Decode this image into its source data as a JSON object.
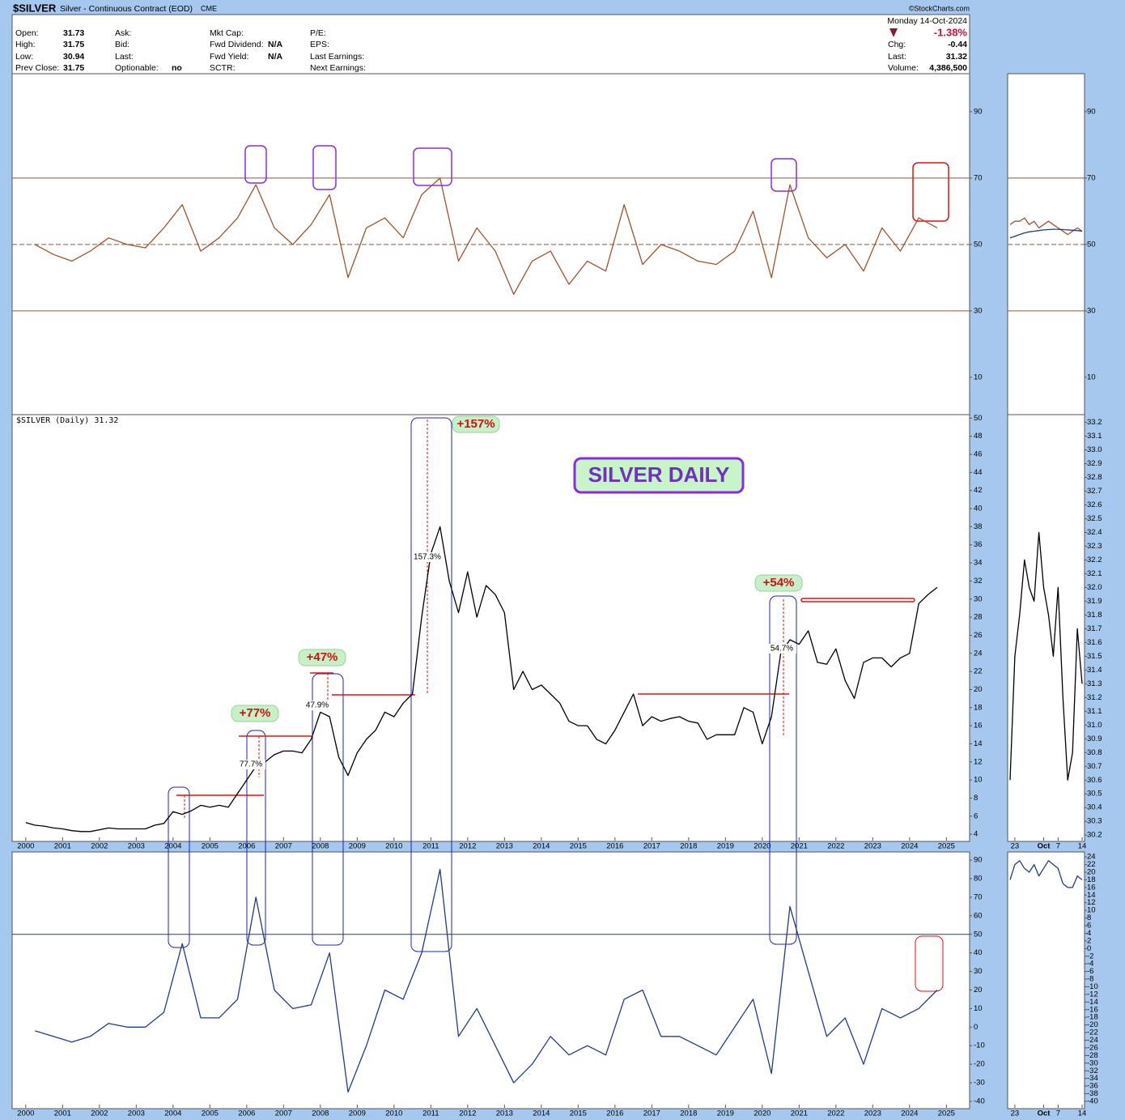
{
  "header": {
    "symbol": "$SILVER",
    "description": "Silver - Continuous Contract (EOD)",
    "exchange": "CME",
    "watermark": "©StockCharts.com",
    "date": "Monday  14-Oct-2024",
    "change_pct": "-1.38%",
    "columns": [
      [
        {
          "label": "Open:",
          "value": "31.73"
        },
        {
          "label": "High:",
          "value": "31.75"
        },
        {
          "label": "Low:",
          "value": "30.94"
        },
        {
          "label": "Prev Close:",
          "value": "31.75"
        }
      ],
      [
        {
          "label": "Ask:"
        },
        {
          "label": "Bid:"
        },
        {
          "label": "Last:"
        },
        {
          "label": "Optionable:",
          "value": "no"
        }
      ],
      [
        {
          "label": "Mkt Cap:"
        },
        {
          "label": "Fwd Dividend:",
          "value": "N/A"
        },
        {
          "label": "Fwd Yield:",
          "value": "N/A"
        },
        {
          "label": "SCTR:"
        }
      ],
      [
        {
          "label": "P/E:"
        },
        {
          "label": "EPS:"
        },
        {
          "label": "Last Earnings:"
        },
        {
          "label": "Next Earnings:"
        }
      ]
    ],
    "summary": [
      {
        "label": "Chg:",
        "value": "-0.44"
      },
      {
        "label": "Last:",
        "value": "31.32"
      },
      {
        "label": "Volume:",
        "value": "4,386,500"
      }
    ]
  },
  "chart_data": [
    {
      "type": "line",
      "color": "#a0522d",
      "x": [
        2000.25,
        2000.75,
        2001.25,
        2001.75,
        2002.25,
        2002.75,
        2003.25,
        2003.75,
        2004.25,
        2004.75,
        2005.25,
        2005.75,
        2006.25,
        2006.75,
        2007.25,
        2007.75,
        2008.25,
        2008.75,
        2009.25,
        2009.75,
        2010.25,
        2010.75,
        2011.25,
        2011.75,
        2012.25,
        2012.75,
        2013.25,
        2013.75,
        2014.25,
        2014.75,
        2015.25,
        2015.75,
        2016.25,
        2016.75,
        2017.25,
        2017.75,
        2018.25,
        2018.75,
        2019.25,
        2019.75,
        2020.25,
        2020.75,
        2021.25,
        2021.75,
        2022.25,
        2022.75,
        2023.25,
        2023.75,
        2024.25,
        2024.75
      ],
      "values": [
        50,
        47,
        45,
        48,
        52,
        50,
        49,
        55,
        62,
        48,
        52,
        58,
        68,
        55,
        50,
        56,
        65,
        40,
        55,
        58,
        52,
        65,
        70,
        45,
        55,
        48,
        35,
        45,
        48,
        38,
        45,
        42,
        62,
        44,
        50,
        48,
        45,
        44,
        48,
        60,
        40,
        68,
        52,
        46,
        50,
        42,
        55,
        48,
        58,
        55
      ],
      "xlim": [
        1999.63,
        2025.63
      ],
      "ylim": [
        -1,
        101.2
      ],
      "yticks": [
        10,
        30,
        50,
        70,
        90
      ],
      "reference_lines": [
        30,
        50,
        70
      ],
      "reference_color": "#a0522d"
    },
    {
      "type": "line",
      "color": "#000000",
      "title": "SILVER DAILY",
      "subtitle": "$SILVER (Daily) 31.32",
      "annotations": [
        "+157%",
        "+77%",
        "+47%",
        "+54%",
        "157.3%",
        "77.7%",
        "47.9%",
        "54.7%"
      ],
      "x": [
        2000,
        2000.25,
        2000.5,
        2000.75,
        2001,
        2001.25,
        2001.5,
        2001.75,
        2002,
        2002.25,
        2002.5,
        2002.75,
        2003,
        2003.25,
        2003.5,
        2003.75,
        2004,
        2004.25,
        2004.5,
        2004.75,
        2005,
        2005.25,
        2005.5,
        2005.75,
        2006,
        2006.25,
        2006.5,
        2006.75,
        2007,
        2007.25,
        2007.5,
        2007.75,
        2008,
        2008.25,
        2008.5,
        2008.75,
        2009,
        2009.25,
        2009.5,
        2009.75,
        2010,
        2010.25,
        2010.5,
        2010.75,
        2011,
        2011.25,
        2011.5,
        2011.75,
        2012,
        2012.25,
        2012.5,
        2012.75,
        2013,
        2013.25,
        2013.5,
        2013.75,
        2014,
        2014.25,
        2014.5,
        2014.75,
        2015,
        2015.25,
        2015.5,
        2015.75,
        2016,
        2016.25,
        2016.5,
        2016.75,
        2017,
        2017.25,
        2017.5,
        2017.75,
        2018,
        2018.25,
        2018.5,
        2018.75,
        2019,
        2019.25,
        2019.5,
        2019.75,
        2020,
        2020.25,
        2020.5,
        2020.75,
        2021,
        2021.25,
        2021.5,
        2021.75,
        2022,
        2022.25,
        2022.5,
        2022.75,
        2023,
        2023.25,
        2023.5,
        2023.75,
        2024,
        2024.25,
        2024.5,
        2024.75
      ],
      "values": [
        5.3,
        5.0,
        4.9,
        4.7,
        4.6,
        4.4,
        4.3,
        4.3,
        4.5,
        4.7,
        4.6,
        4.6,
        4.6,
        4.6,
        5.0,
        5.2,
        6.5,
        6.2,
        6.6,
        7.2,
        7.0,
        7.2,
        7.0,
        8.5,
        10.0,
        11.5,
        12.0,
        12.8,
        13.2,
        13.2,
        13.0,
        14.5,
        17.5,
        17.0,
        12.5,
        10.5,
        13.0,
        14.5,
        15.5,
        17.5,
        17.0,
        18.5,
        19.5,
        28.0,
        35.0,
        38.0,
        32.0,
        28.5,
        33.0,
        28.0,
        31.5,
        30.5,
        28.5,
        20.0,
        22.0,
        20.0,
        20.5,
        19.5,
        18.5,
        16.5,
        16.0,
        16.0,
        14.5,
        14.0,
        15.5,
        17.5,
        19.5,
        16.0,
        17.0,
        16.5,
        16.8,
        17.0,
        16.5,
        16.3,
        14.5,
        15.0,
        15.0,
        15.0,
        18.0,
        17.5,
        14.0,
        17.0,
        24.0,
        25.5,
        25.0,
        26.5,
        23.0,
        22.8,
        24.5,
        21.0,
        19.0,
        23.0,
        23.5,
        23.5,
        22.5,
        23.5,
        24.0,
        29.5,
        30.5,
        31.3
      ],
      "xlim": [
        1999.63,
        2025.63
      ],
      "xticks": [
        2000,
        2001,
        2002,
        2003,
        2004,
        2005,
        2006,
        2007,
        2008,
        2009,
        2010,
        2011,
        2012,
        2013,
        2014,
        2015,
        2016,
        2017,
        2018,
        2019,
        2020,
        2021,
        2022,
        2023,
        2024,
        2025
      ],
      "ylim": [
        3.3,
        50.3
      ],
      "yticks": [
        4,
        6,
        8,
        10,
        12,
        14,
        16,
        18,
        20,
        22,
        24,
        26,
        28,
        30,
        32,
        34,
        36,
        38,
        40,
        42,
        44,
        46,
        48,
        50
      ]
    },
    {
      "type": "line",
      "color": "#1f3c88",
      "x": [
        2000.25,
        2000.75,
        2001.25,
        2001.75,
        2002.25,
        2002.75,
        2003.25,
        2003.75,
        2004.25,
        2004.75,
        2005.25,
        2005.75,
        2006.25,
        2006.75,
        2007.25,
        2007.75,
        2008.25,
        2008.75,
        2009.25,
        2009.75,
        2010.25,
        2010.75,
        2011.25,
        2011.75,
        2012.25,
        2012.75,
        2013.25,
        2013.75,
        2014.25,
        2014.75,
        2015.25,
        2015.75,
        2016.25,
        2016.75,
        2017.25,
        2017.75,
        2018.25,
        2018.75,
        2019.25,
        2019.75,
        2020.25,
        2020.75,
        2021.25,
        2021.75,
        2022.25,
        2022.75,
        2023.25,
        2023.75,
        2024.25,
        2024.75
      ],
      "values": [
        -2,
        -5,
        -8,
        -5,
        2,
        0,
        0,
        8,
        45,
        5,
        5,
        15,
        70,
        20,
        10,
        12,
        40,
        -35,
        -10,
        20,
        15,
        40,
        85,
        -5,
        10,
        -10,
        -30,
        -20,
        -5,
        -15,
        -10,
        -15,
        15,
        20,
        -5,
        -5,
        -10,
        -15,
        0,
        15,
        -25,
        65,
        30,
        -5,
        5,
        -20,
        10,
        5,
        10,
        20
      ],
      "xlim": [
        1999.63,
        2025.63
      ],
      "xticks": [
        2000,
        2001,
        2002,
        2003,
        2004,
        2005,
        2006,
        2007,
        2008,
        2009,
        2010,
        2011,
        2012,
        2013,
        2014,
        2015,
        2016,
        2017,
        2018,
        2019,
        2020,
        2021,
        2022,
        2023,
        2024,
        2025
      ],
      "ylim": [
        -43.5,
        94.4
      ],
      "yticks": [
        -40,
        -30,
        -20,
        -10,
        0,
        10,
        20,
        30,
        40,
        50,
        60,
        70,
        80,
        90
      ],
      "reference_lines": [
        50
      ],
      "reference_color": "#1f3c88"
    },
    {
      "type": "line",
      "series": [
        {
          "color": "#a0522d",
          "values": [
            56,
            57,
            57,
            58,
            56,
            57,
            55,
            56,
            57,
            56,
            55,
            54,
            53,
            54,
            55,
            54
          ]
        },
        {
          "color": "#1f3c88",
          "values": [
            52,
            52.5,
            53,
            53.5,
            53.8,
            54,
            54.2,
            54.4,
            54.5,
            54.6,
            54.6,
            54.5,
            54.4,
            54.3,
            54.2,
            54
          ]
        }
      ],
      "ylim": [
        -1,
        101.2
      ],
      "yticks": [
        10,
        30,
        50,
        70,
        90
      ],
      "reference_lines": [
        30,
        50,
        70
      ],
      "reference_color": "#a0522d"
    },
    {
      "type": "line",
      "color": "#000000",
      "categories": [
        null,
        "23",
        null,
        null,
        null,
        null,
        null,
        "Oct",
        null,
        null,
        "7",
        null,
        null,
        null,
        null,
        "14"
      ],
      "values": [
        30.6,
        31.5,
        31.8,
        32.2,
        32.0,
        31.9,
        32.4,
        32.0,
        31.8,
        31.5,
        32.0,
        31.2,
        30.6,
        30.8,
        31.7,
        31.3
      ],
      "ylim": [
        30.16,
        33.25
      ],
      "yticks": [
        30.2,
        30.3,
        30.4,
        30.5,
        30.6,
        30.7,
        30.8,
        30.9,
        {
          "value": 31,
          "label": "31.0"
        },
        31.1,
        31.2,
        31.3,
        31.4,
        31.5,
        31.6,
        31.7,
        31.8,
        31.9,
        {
          "value": 32,
          "label": "32.0"
        },
        32.1,
        32.2,
        32.3,
        32.4,
        32.5,
        32.6,
        32.7,
        32.8,
        32.9,
        {
          "value": 33,
          "label": "33.0"
        },
        33.1,
        33.2
      ]
    },
    {
      "type": "line",
      "color": "#1f3c88",
      "categories": [
        null,
        "23",
        null,
        null,
        null,
        null,
        null,
        "Oct",
        null,
        null,
        "7",
        null,
        null,
        null,
        null,
        "14"
      ],
      "values": [
        18,
        22,
        23,
        21,
        20,
        22,
        19,
        21,
        23,
        22,
        21,
        17,
        16,
        16,
        19,
        18
      ],
      "ylim": [
        -41.7,
        25.3
      ],
      "yticks": [
        -40,
        -38,
        -36,
        -34,
        -32,
        -30,
        -28,
        -26,
        -24,
        -22,
        -20,
        -18,
        -16,
        -14,
        -12,
        -10,
        -8,
        -6,
        -4,
        -2,
        0,
        2,
        4,
        6,
        8,
        10,
        12,
        14,
        16,
        18,
        20,
        22,
        24
      ]
    }
  ]
}
